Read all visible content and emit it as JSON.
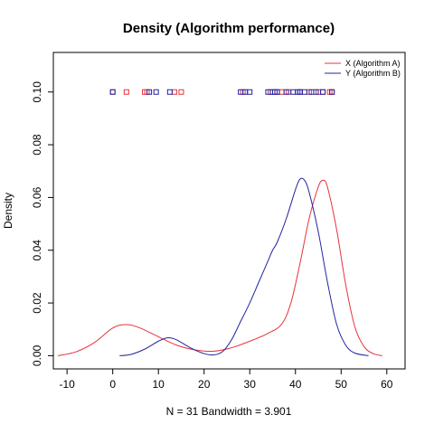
{
  "chart_data": {
    "type": "line",
    "title": "Density (Algorithm performance)",
    "xlabel": "N = 31   Bandwidth = 3.901",
    "ylabel": "Density",
    "xlim": [
      -13,
      64
    ],
    "ylim": [
      -0.005,
      0.115
    ],
    "x_ticks": [
      -10,
      0,
      10,
      20,
      30,
      40,
      50,
      60
    ],
    "y_ticks": [
      0.0,
      0.02,
      0.04,
      0.06,
      0.08,
      0.1
    ],
    "x_tick_labels": [
      "-10",
      "0",
      "10",
      "20",
      "30",
      "40",
      "50",
      "60"
    ],
    "y_tick_labels": [
      "0.00",
      "0.02",
      "0.04",
      "0.06",
      "0.08",
      "0.10"
    ],
    "legend_position": "top-right",
    "series": [
      {
        "name": "X (Algorithm A)",
        "color": "#e8323c",
        "points": [
          [
            -12,
            0.0
          ],
          [
            -8,
            0.0015
          ],
          [
            -4,
            0.005
          ],
          [
            0,
            0.0105
          ],
          [
            3,
            0.0118
          ],
          [
            6,
            0.0105
          ],
          [
            10,
            0.0072
          ],
          [
            14,
            0.004
          ],
          [
            18,
            0.0022
          ],
          [
            22,
            0.0017
          ],
          [
            26,
            0.003
          ],
          [
            30,
            0.0055
          ],
          [
            34,
            0.0085
          ],
          [
            37,
            0.012
          ],
          [
            39,
            0.02
          ],
          [
            41,
            0.035
          ],
          [
            43,
            0.052
          ],
          [
            45,
            0.064
          ],
          [
            46,
            0.0665
          ],
          [
            47,
            0.064
          ],
          [
            49,
            0.048
          ],
          [
            51,
            0.027
          ],
          [
            53,
            0.011
          ],
          [
            55,
            0.0035
          ],
          [
            57,
            0.0008
          ],
          [
            59,
            0.0
          ]
        ],
        "rug": [
          0,
          3,
          7,
          7.5,
          13.5,
          15,
          28.5,
          34.5,
          36,
          37,
          38.5,
          41,
          43,
          45,
          46,
          47.5,
          48
        ]
      },
      {
        "name": "Y (Algorithm B)",
        "color": "#2323a0",
        "points": [
          [
            1.5,
            0.0
          ],
          [
            4,
            0.0005
          ],
          [
            7,
            0.0025
          ],
          [
            10,
            0.0055
          ],
          [
            12,
            0.0068
          ],
          [
            14,
            0.006
          ],
          [
            17,
            0.003
          ],
          [
            20,
            0.0008
          ],
          [
            22,
            0.0003
          ],
          [
            24,
            0.0015
          ],
          [
            26,
            0.006
          ],
          [
            28,
            0.013
          ],
          [
            30,
            0.02
          ],
          [
            32,
            0.028
          ],
          [
            34,
            0.036
          ],
          [
            35,
            0.04
          ],
          [
            36,
            0.043
          ],
          [
            38,
            0.052
          ],
          [
            40,
            0.063
          ],
          [
            41,
            0.067
          ],
          [
            42,
            0.0665
          ],
          [
            43,
            0.062
          ],
          [
            45,
            0.047
          ],
          [
            47,
            0.028
          ],
          [
            49,
            0.012
          ],
          [
            51,
            0.004
          ],
          [
            53,
            0.001
          ],
          [
            56,
            0.0
          ]
        ],
        "rug": [
          0,
          8,
          9.5,
          12.5,
          28,
          29,
          30,
          34,
          35,
          35.5,
          36,
          38,
          39.5,
          40.5,
          41,
          42,
          43.5,
          44.5,
          46,
          48
        ]
      }
    ],
    "rug_y": 0.1
  }
}
